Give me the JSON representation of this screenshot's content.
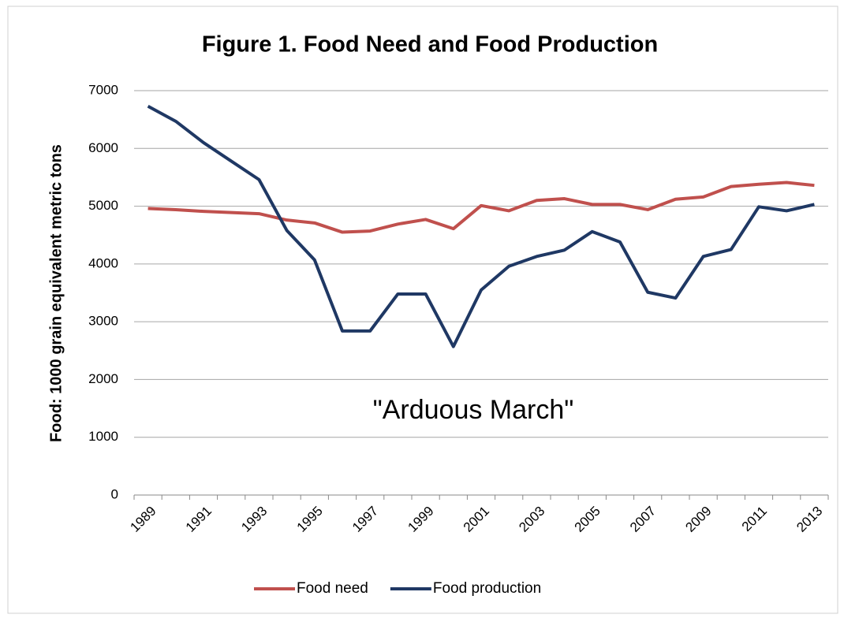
{
  "chart_data": {
    "type": "line",
    "title": "Figure 1. Food Need and Food Production",
    "y_label": "Food: 1000 grain equivalent metric tons",
    "annotation": "\"Arduous March\"",
    "annotation_color": "#c00000",
    "categories": [
      "1989",
      null,
      "1991",
      null,
      "1993",
      null,
      "1995",
      null,
      "1997",
      null,
      "1999",
      null,
      "2001",
      null,
      "2003",
      null,
      "2005",
      null,
      "2007",
      null,
      "2009",
      null,
      "2011",
      null,
      "2013"
    ],
    "series": [
      {
        "name": "Food need",
        "color": "#c0504d",
        "values": [
          4960,
          4940,
          4910,
          4890,
          4870,
          4760,
          4710,
          4550,
          4570,
          4690,
          4770,
          4610,
          5010,
          4920,
          5100,
          5130,
          5030,
          5030,
          4940,
          5120,
          5160,
          5340,
          5380,
          5410,
          5360
        ]
      },
      {
        "name": "Food production",
        "color": "#1f3864",
        "values": [
          6730,
          6470,
          6100,
          5780,
          5460,
          4580,
          4070,
          2840,
          2840,
          3480,
          3480,
          2570,
          3550,
          3960,
          4130,
          4240,
          4560,
          4380,
          3510,
          3410,
          4130,
          4250,
          4990,
          4920,
          5030
        ]
      }
    ],
    "ylim": [
      0,
      7000
    ],
    "yticks": [
      0,
      1000,
      2000,
      3000,
      4000,
      5000,
      6000,
      7000
    ],
    "grid": true,
    "legend": "bottom"
  }
}
